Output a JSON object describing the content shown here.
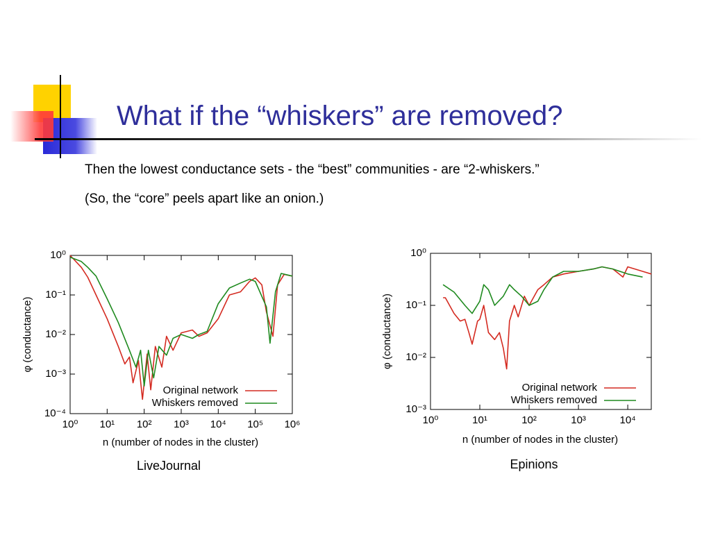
{
  "header": {
    "title": "What if the “whiskers” are removed?"
  },
  "body": {
    "lines": [
      "Then the lowest conductance sets - the “best” communities - are “2-whiskers.”",
      "(So, the “core” peels apart like an onion.)"
    ]
  },
  "chart_data": [
    {
      "type": "line",
      "caption": "LiveJournal",
      "x_label": "n (number of nodes in the cluster)",
      "y_label": "φ (conductance)",
      "log_x": true,
      "log_y": true,
      "legend": "lower right",
      "xlim": [
        1,
        1000000
      ],
      "ylim": [
        0.0001,
        1
      ],
      "xticks": [
        {
          "value": 1,
          "label": "10⁰"
        },
        {
          "value": 10,
          "label": "10¹"
        },
        {
          "value": 100,
          "label": "10²"
        },
        {
          "value": 1000,
          "label": "10³"
        },
        {
          "value": 10000,
          "label": "10⁴"
        },
        {
          "value": 100000,
          "label": "10⁵"
        },
        {
          "value": 1000000,
          "label": "10⁶"
        }
      ],
      "yticks": [
        {
          "value": 0.0001,
          "label": "10⁻⁴"
        },
        {
          "value": 0.001,
          "label": "10⁻³"
        },
        {
          "value": 0.01,
          "label": "10⁻²"
        },
        {
          "value": 0.1,
          "label": "10⁻¹"
        },
        {
          "value": 1,
          "label": "10⁰"
        }
      ],
      "series": [
        {
          "name": "Original network",
          "color": "#d42a20",
          "x": [
            1,
            2,
            3,
            5,
            10,
            20,
            30,
            40,
            50,
            70,
            90,
            120,
            150,
            200,
            300,
            400,
            600,
            1000,
            2000,
            3000,
            5000,
            10000,
            20000,
            40000,
            70000,
            100000,
            150000,
            200000,
            300000,
            400000,
            600000,
            1000000
          ],
          "values": [
            1.0,
            0.5,
            0.28,
            0.1,
            0.025,
            0.005,
            0.0018,
            0.0027,
            0.0006,
            0.0022,
            0.00023,
            0.0032,
            0.0004,
            0.005,
            0.0015,
            0.009,
            0.004,
            0.011,
            0.013,
            0.009,
            0.011,
            0.025,
            0.1,
            0.12,
            0.22,
            0.27,
            0.18,
            0.037,
            0.009,
            0.18,
            0.33,
            0.3
          ]
        },
        {
          "name": "Whiskers removed",
          "color": "#1f8a1f",
          "x": [
            1,
            2,
            3,
            5,
            10,
            20,
            40,
            60,
            80,
            100,
            130,
            180,
            250,
            400,
            600,
            1000,
            2000,
            3000,
            5000,
            10000,
            20000,
            40000,
            70000,
            100000,
            200000,
            250000,
            350000,
            500000,
            1000000
          ],
          "values": [
            0.9,
            0.7,
            0.5,
            0.3,
            0.08,
            0.02,
            0.004,
            0.0015,
            0.004,
            0.0005,
            0.004,
            0.0008,
            0.005,
            0.003,
            0.008,
            0.01,
            0.008,
            0.01,
            0.012,
            0.06,
            0.15,
            0.2,
            0.25,
            0.22,
            0.05,
            0.006,
            0.12,
            0.35,
            0.3
          ]
        }
      ]
    },
    {
      "type": "line",
      "caption": "Epinions",
      "x_label": "n (number of nodes in the cluster)",
      "y_label": "φ (conductance)",
      "log_x": true,
      "log_y": true,
      "legend": "lower right",
      "xlim": [
        1,
        30000
      ],
      "ylim": [
        0.001,
        1
      ],
      "xticks": [
        {
          "value": 1,
          "label": "10⁰"
        },
        {
          "value": 10,
          "label": "10¹"
        },
        {
          "value": 100,
          "label": "10²"
        },
        {
          "value": 1000,
          "label": "10³"
        },
        {
          "value": 10000,
          "label": "10⁴"
        }
      ],
      "yticks": [
        {
          "value": 0.001,
          "label": "10⁻³"
        },
        {
          "value": 0.01,
          "label": "10⁻²"
        },
        {
          "value": 0.1,
          "label": "10⁻¹"
        },
        {
          "value": 1,
          "label": "10⁰"
        }
      ],
      "series": [
        {
          "name": "Original network",
          "color": "#d42a20",
          "x": [
            1.8,
            2,
            3,
            4,
            5,
            6,
            7,
            9,
            10,
            12,
            15,
            20,
            25,
            30,
            35,
            40,
            50,
            60,
            80,
            100,
            150,
            200,
            300,
            500,
            1000,
            2000,
            3000,
            5000,
            8000,
            10000,
            20000,
            30000
          ],
          "values": [
            0.14,
            0.14,
            0.07,
            0.05,
            0.054,
            0.03,
            0.018,
            0.05,
            0.054,
            0.1,
            0.03,
            0.022,
            0.03,
            0.015,
            0.006,
            0.05,
            0.1,
            0.06,
            0.15,
            0.1,
            0.2,
            0.25,
            0.35,
            0.4,
            0.45,
            0.5,
            0.55,
            0.5,
            0.35,
            0.55,
            0.45,
            0.4
          ]
        },
        {
          "name": "Whiskers removed",
          "color": "#1f8a1f",
          "x": [
            1.8,
            3,
            5,
            7,
            10,
            12,
            15,
            20,
            30,
            40,
            50,
            70,
            100,
            150,
            200,
            300,
            500,
            1000,
            2000,
            3000,
            5000,
            10000,
            20000
          ],
          "values": [
            0.25,
            0.18,
            0.1,
            0.07,
            0.12,
            0.25,
            0.2,
            0.1,
            0.15,
            0.25,
            0.2,
            0.15,
            0.1,
            0.12,
            0.2,
            0.35,
            0.45,
            0.45,
            0.5,
            0.55,
            0.5,
            0.4,
            0.35
          ]
        }
      ]
    }
  ]
}
